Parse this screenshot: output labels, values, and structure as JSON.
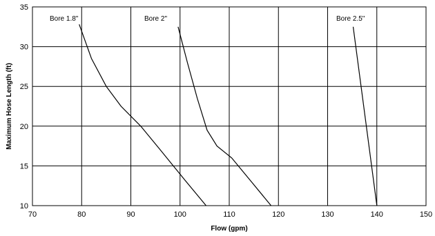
{
  "chart_data": {
    "type": "line",
    "title": "",
    "xlabel": "Flow (gpm)",
    "ylabel": "Maximum Hose Length (ft)",
    "xlim": [
      70,
      150
    ],
    "ylim": [
      10,
      35
    ],
    "x_ticks": [
      "70",
      "80",
      "90",
      "100",
      "110",
      "120",
      "130",
      "140",
      "150"
    ],
    "y_ticks": [
      "10",
      "15",
      "20",
      "25",
      "30",
      "35"
    ],
    "grid": true,
    "legend": "none",
    "series": [
      {
        "name": "Bore 1.8\"",
        "points": [
          [
            79.5,
            32.8
          ],
          [
            82.0,
            28.5
          ],
          [
            85.0,
            25.0
          ],
          [
            88.0,
            22.5
          ],
          [
            92.0,
            20.0
          ],
          [
            96.0,
            17.0
          ],
          [
            101.0,
            13.2
          ],
          [
            105.3,
            10.0
          ]
        ]
      },
      {
        "name": "Bore 2\"",
        "points": [
          [
            99.6,
            32.5
          ],
          [
            101.5,
            28.0
          ],
          [
            103.5,
            23.5
          ],
          [
            105.5,
            19.5
          ],
          [
            107.5,
            17.5
          ],
          [
            110.5,
            16.0
          ],
          [
            114.5,
            13.0
          ],
          [
            118.5,
            10.0
          ]
        ]
      },
      {
        "name": "Bore 2.5\"",
        "points": [
          [
            135.2,
            32.5
          ],
          [
            140.0,
            10.0
          ]
        ]
      }
    ]
  }
}
